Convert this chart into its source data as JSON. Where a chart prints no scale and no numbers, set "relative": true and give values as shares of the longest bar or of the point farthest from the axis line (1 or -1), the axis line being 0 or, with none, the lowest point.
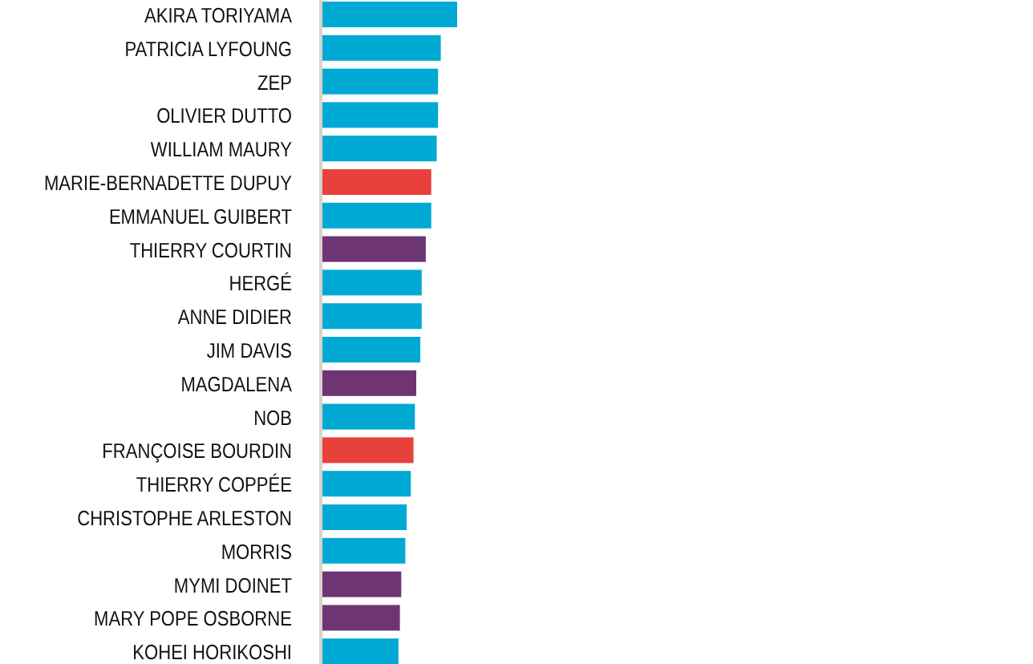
{
  "chart_data": {
    "type": "bar",
    "orientation": "horizontal",
    "relative": true,
    "categories": [
      "AKIRA TORIYAMA",
      "PATRICIA LYFOUNG",
      "ZEP",
      "OLIVIER DUTTO",
      "WILLIAM MAURY",
      "MARIE-BERNADETTE DUPUY",
      "EMMANUEL GUIBERT",
      "THIERRY COURTIN",
      "HERGÉ",
      "ANNE DIDIER",
      "JIM DAVIS",
      "MAGDALENA",
      "NOB",
      "FRANÇOISE BOURDIN",
      "THIERRY COPPÉE",
      "CHRISTOPHE ARLESTON",
      "MORRIS",
      "MYMI DOINET",
      "MARY POPE OSBORNE",
      "KOHEI HORIKOSHI"
    ],
    "values": [
      1,
      0.88,
      0.86,
      0.86,
      0.85,
      0.81,
      0.81,
      0.77,
      0.74,
      0.74,
      0.73,
      0.7,
      0.69,
      0.68,
      0.66,
      0.63,
      0.62,
      0.59,
      0.58,
      0.57
    ],
    "colors": [
      "#00a9d4",
      "#00a9d4",
      "#00a9d4",
      "#00a9d4",
      "#00a9d4",
      "#e8413c",
      "#00a9d4",
      "#6e3575",
      "#00a9d4",
      "#00a9d4",
      "#00a9d4",
      "#6e3575",
      "#00a9d4",
      "#e8413c",
      "#00a9d4",
      "#00a9d4",
      "#00a9d4",
      "#6e3575",
      "#6e3575",
      "#00a9d4"
    ]
  }
}
